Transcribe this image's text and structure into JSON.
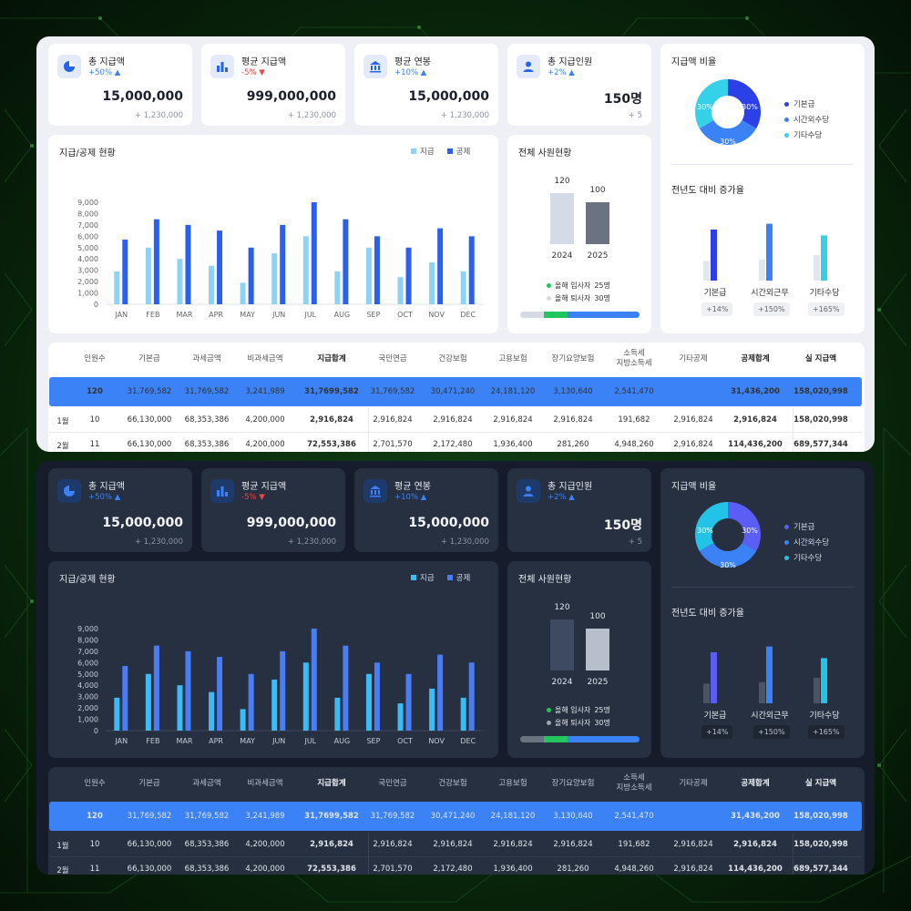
{
  "kpis": [
    {
      "title": "총 지급액",
      "delta": "+50% ▲",
      "dir": "up",
      "value": "15,000,000",
      "sub": "+ 1,230,000",
      "icon": "pie-chart-icon"
    },
    {
      "title": "평균 지급액",
      "delta": "-5% ▼",
      "dir": "down",
      "value": "999,000,000",
      "sub": "+ 1,230,000",
      "icon": "bar-chart-icon"
    },
    {
      "title": "평균 연봉",
      "delta": "+10% ▲",
      "dir": "up",
      "value": "15,000,000",
      "sub": "+ 1,230,000",
      "icon": "bank-icon"
    },
    {
      "title": "총 지급인원",
      "delta": "+2% ▲",
      "dir": "up",
      "value": "150명",
      "sub": "+ 5",
      "icon": "person-icon"
    }
  ],
  "monthly_chart": {
    "title": "지급/공제 현황",
    "legend": [
      "지급",
      "공제"
    ],
    "yticks": [
      "9,000",
      "8,000",
      "7,000",
      "6,000",
      "5,000",
      "4,000",
      "3,000",
      "2,000",
      "1,000",
      "0"
    ]
  },
  "chart_data": [
    {
      "type": "bar",
      "title": "지급/공제 현황",
      "categories": [
        "JAN",
        "FEB",
        "MAR",
        "APR",
        "MAY",
        "JUN",
        "JUL",
        "AUG",
        "SEP",
        "OCT",
        "NOV",
        "DEC"
      ],
      "series": [
        {
          "name": "지급",
          "values": [
            2900,
            5000,
            4000,
            3400,
            1900,
            4500,
            6000,
            2900,
            5000,
            2400,
            3700,
            2900
          ]
        },
        {
          "name": "공제",
          "values": [
            5700,
            7500,
            7000,
            6500,
            5000,
            7000,
            9000,
            7500,
            6000,
            5000,
            6700,
            6000
          ]
        }
      ],
      "ylim": [
        0,
        9000
      ],
      "xlabel": "",
      "ylabel": ""
    },
    {
      "type": "bar",
      "title": "전체 사원현황",
      "categories": [
        "2024",
        "2025"
      ],
      "values": [
        120,
        100
      ],
      "legend": [
        "올해 입사자 25명",
        "올해 퇴사자 30명"
      ]
    },
    {
      "type": "pie",
      "title": "지급액 비율",
      "categories": [
        "기본급",
        "시간외수당",
        "기타수당"
      ],
      "values": [
        30,
        30,
        30
      ]
    },
    {
      "type": "bar",
      "title": "전년도 대비 증가율",
      "categories": [
        "기본급",
        "시간외근무",
        "기타수당"
      ],
      "series": [
        {
          "values": [
            27,
            29,
            35
          ]
        },
        {
          "values": [
            70,
            78,
            62
          ]
        }
      ],
      "labels": [
        "+14%",
        "+150%",
        "+165%"
      ]
    }
  ],
  "employee": {
    "title": "전체 사원현황",
    "years": [
      "2024",
      "2025"
    ],
    "counts": [
      "120",
      "100"
    ],
    "join": "올해 입사자",
    "join_count": "25명",
    "leave": "올해 퇴사자",
    "leave_count": "30명"
  },
  "ratio": {
    "title": "지급액 비율",
    "slices": [
      "30%",
      "30%",
      "30%"
    ],
    "legend": [
      "기본급",
      "시간외수당",
      "기타수당"
    ]
  },
  "growth": {
    "title": "전년도 대비 증가율",
    "labels": [
      "기본급",
      "시간외근무",
      "기타수당"
    ],
    "pills": [
      "+14%",
      "+150%",
      "+165%"
    ]
  },
  "table": {
    "headers": [
      "인원수",
      "기본급",
      "과세금액",
      "비과세금액",
      "지급합계",
      "국민연금",
      "건강보험",
      "고용보험",
      "장기요양보험",
      "소득세\n지방소득세",
      "기타공제",
      "공제합계",
      "실 지급액"
    ],
    "total": [
      "120",
      "31,769,582",
      "31,769,582",
      "3,241,989",
      "31,7699,582",
      "31,769,582",
      "30,471,240",
      "24,181,120",
      "3,130,640",
      "2,541,470",
      "",
      "31,436,200",
      "158,020,998"
    ],
    "rows": [
      {
        "label": "1월",
        "cells": [
          "10",
          "66,130,000",
          "68,353,386",
          "4,200,000",
          "2,916,824",
          "2,916,824",
          "2,916,824",
          "2,916,824",
          "2,916,824",
          "191,682",
          "2,916,824",
          "2,916,824",
          "158,020,998"
        ]
      },
      {
        "label": "2월",
        "cells": [
          "11",
          "66,130,000",
          "68,353,386",
          "4,200,000",
          "72,553,386",
          "2,701,570",
          "2,172,480",
          "1,936,400",
          "281,260",
          "4,948,260",
          "2,916,824",
          "114,436,200",
          "689,577,344"
        ]
      }
    ]
  },
  "colors": {
    "accent": "#3b82f6",
    "light_bar": "#8ed3f5",
    "deep_blue": "#2b5ff0",
    "cyan": "#35d1e8",
    "green": "#22c55e",
    "dark_bar_light": "#38bdf8"
  }
}
